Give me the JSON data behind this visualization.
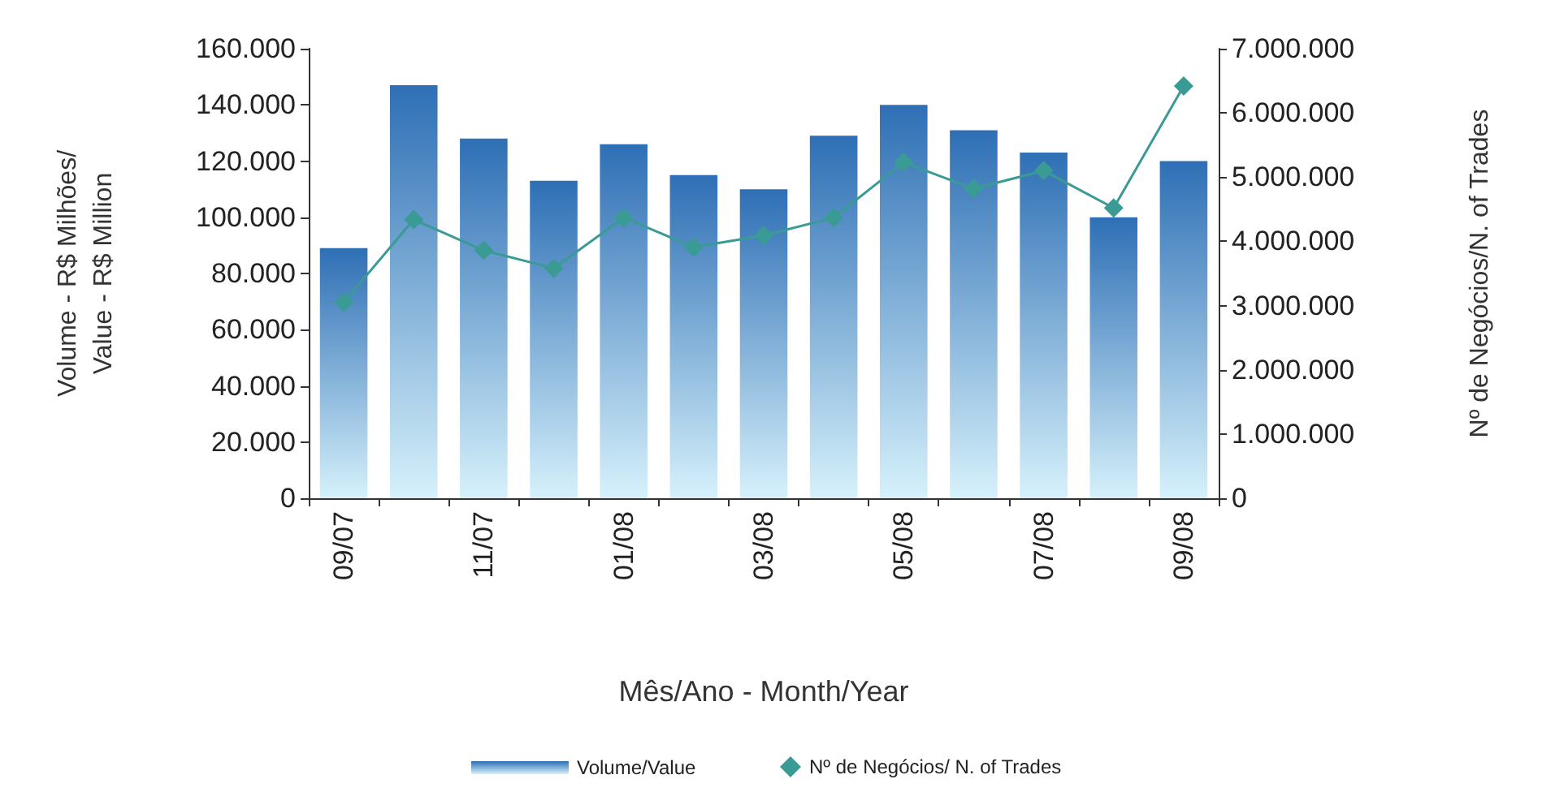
{
  "chart_data": {
    "type": "bar",
    "xlabel": "Mês/Ano - Month/Year",
    "ylabel": "Volume - R$ Milhões/\nValue - R$ Million",
    "y2label": "Nº de Negócios/N. of Trades",
    "categories": [
      "09/07",
      null,
      "11/07",
      null,
      "01/08",
      null,
      "03/08",
      null,
      "05/08",
      null,
      "07/08",
      null,
      "09/08"
    ],
    "series": [
      {
        "name": "Volume/Value",
        "color": "#2e6fb5",
        "values": [
          89000,
          147000,
          128000,
          113000,
          126000,
          115000,
          110000,
          129000,
          140000,
          131000,
          123000,
          100000,
          120000
        ]
      },
      {
        "name": "Nº de Negócios/ N. of Trades",
        "type": "line",
        "axis": "y2",
        "color": "#3a9a94",
        "marker": "diamond",
        "values": [
          3050000,
          4340000,
          3860000,
          3580000,
          4370000,
          3910000,
          4090000,
          4370000,
          5230000,
          4820000,
          5100000,
          4520000,
          6420000
        ]
      }
    ],
    "ylim": [
      0,
      160000
    ],
    "yticks": [
      {
        "value": 0,
        "label": "0"
      },
      {
        "value": 20000,
        "label": "20.000"
      },
      {
        "value": 40000,
        "label": "40.000"
      },
      {
        "value": 60000,
        "label": "60.000"
      },
      {
        "value": 80000,
        "label": "80.000"
      },
      {
        "value": 100000,
        "label": "100.000"
      },
      {
        "value": 120000,
        "label": "120.000"
      },
      {
        "value": 140000,
        "label": "140.000"
      },
      {
        "value": 160000,
        "label": "160.000"
      }
    ],
    "y2lim": [
      0,
      7000000
    ],
    "y2ticks": [
      {
        "value": 0,
        "label": "0"
      },
      {
        "value": 1000000,
        "label": "1.000.000"
      },
      {
        "value": 2000000,
        "label": "2.000.000"
      },
      {
        "value": 3000000,
        "label": "3.000.000"
      },
      {
        "value": 4000000,
        "label": "4.000.000"
      },
      {
        "value": 5000000,
        "label": "5.000.000"
      },
      {
        "value": 6000000,
        "label": "6.000.000"
      },
      {
        "value": 7000000,
        "label": "7.000.000"
      }
    ],
    "grid": false,
    "legend": "bottom"
  }
}
